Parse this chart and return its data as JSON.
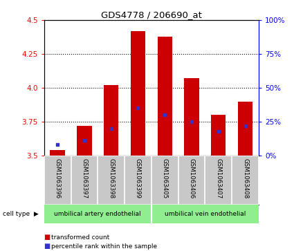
{
  "title": "GDS4778 / 206690_at",
  "samples": [
    "GSM1063396",
    "GSM1063397",
    "GSM1063398",
    "GSM1063399",
    "GSM1063405",
    "GSM1063406",
    "GSM1063407",
    "GSM1063408"
  ],
  "transformed_count": [
    3.54,
    3.72,
    4.02,
    4.42,
    4.38,
    4.07,
    3.8,
    3.9
  ],
  "percentile_rank_pct": [
    8,
    11,
    20,
    35,
    30,
    25,
    18,
    22
  ],
  "bar_bottom": 3.5,
  "ylim_left": [
    3.5,
    4.5
  ],
  "ylim_right": [
    0,
    100
  ],
  "yticks_left": [
    3.5,
    3.75,
    4.0,
    4.25,
    4.5
  ],
  "yticks_right": [
    0,
    25,
    50,
    75,
    100
  ],
  "ytick_labels_right": [
    "0%",
    "25%",
    "50%",
    "75%",
    "100%"
  ],
  "bar_color": "#cc0000",
  "percentile_color": "#3333cc",
  "group1_label": "umbilical artery endothelial",
  "group2_label": "umbilical vein endothelial",
  "cell_type_label": "cell type",
  "legend1": "transformed count",
  "legend2": "percentile rank within the sample",
  "green_color": "#90ee90",
  "gray_color": "#c8c8c8",
  "bar_width": 0.55
}
